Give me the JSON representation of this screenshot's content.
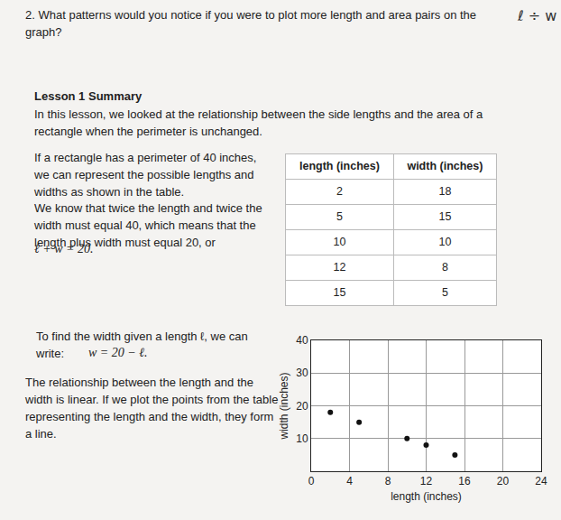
{
  "question": {
    "text": "2. What patterns would you notice if you were to plot more length and area pairs on the graph?",
    "handwriting": "ℓ ÷ w"
  },
  "summary": {
    "title": "Lesson 1 Summary",
    "intro": "In this lesson, we looked at the relationship between the side lengths and the area of a rectangle when the perimeter is unchanged.",
    "paragraph1": "If a rectangle has a perimeter of 40 inches, we can represent the possible lengths and widths as shown in the table.",
    "paragraph2": "We know that twice the length and twice the width must equal 40, which means that the length plus width must equal 20, or",
    "formula1": "ℓ + w = 20.",
    "paragraph3": "To find the width given a length ℓ, we can write:",
    "formula2": "w = 20 − ℓ.",
    "paragraph4": "The relationship between the length and the width is linear. If we plot the points from the table representing the length and the width, they form a line."
  },
  "table": {
    "header": [
      "length (inches)",
      "width (inches)"
    ],
    "rows": [
      [
        "2",
        "18"
      ],
      [
        "5",
        "15"
      ],
      [
        "10",
        "10"
      ],
      [
        "12",
        "8"
      ],
      [
        "15",
        "5"
      ]
    ]
  },
  "chart_data": {
    "type": "scatter",
    "x_label": "length (inches)",
    "y_label": "width (inches)",
    "x": [
      2,
      5,
      10,
      12,
      15
    ],
    "values": [
      18,
      15,
      10,
      8,
      5
    ],
    "color": "#111111",
    "marker": "circle",
    "xlim": [
      0,
      24
    ],
    "xticks": [
      0,
      4,
      8,
      12,
      16,
      20,
      24
    ],
    "ylim": [
      0,
      40
    ],
    "yticks": [
      10,
      20,
      30,
      40
    ],
    "grid": true
  }
}
